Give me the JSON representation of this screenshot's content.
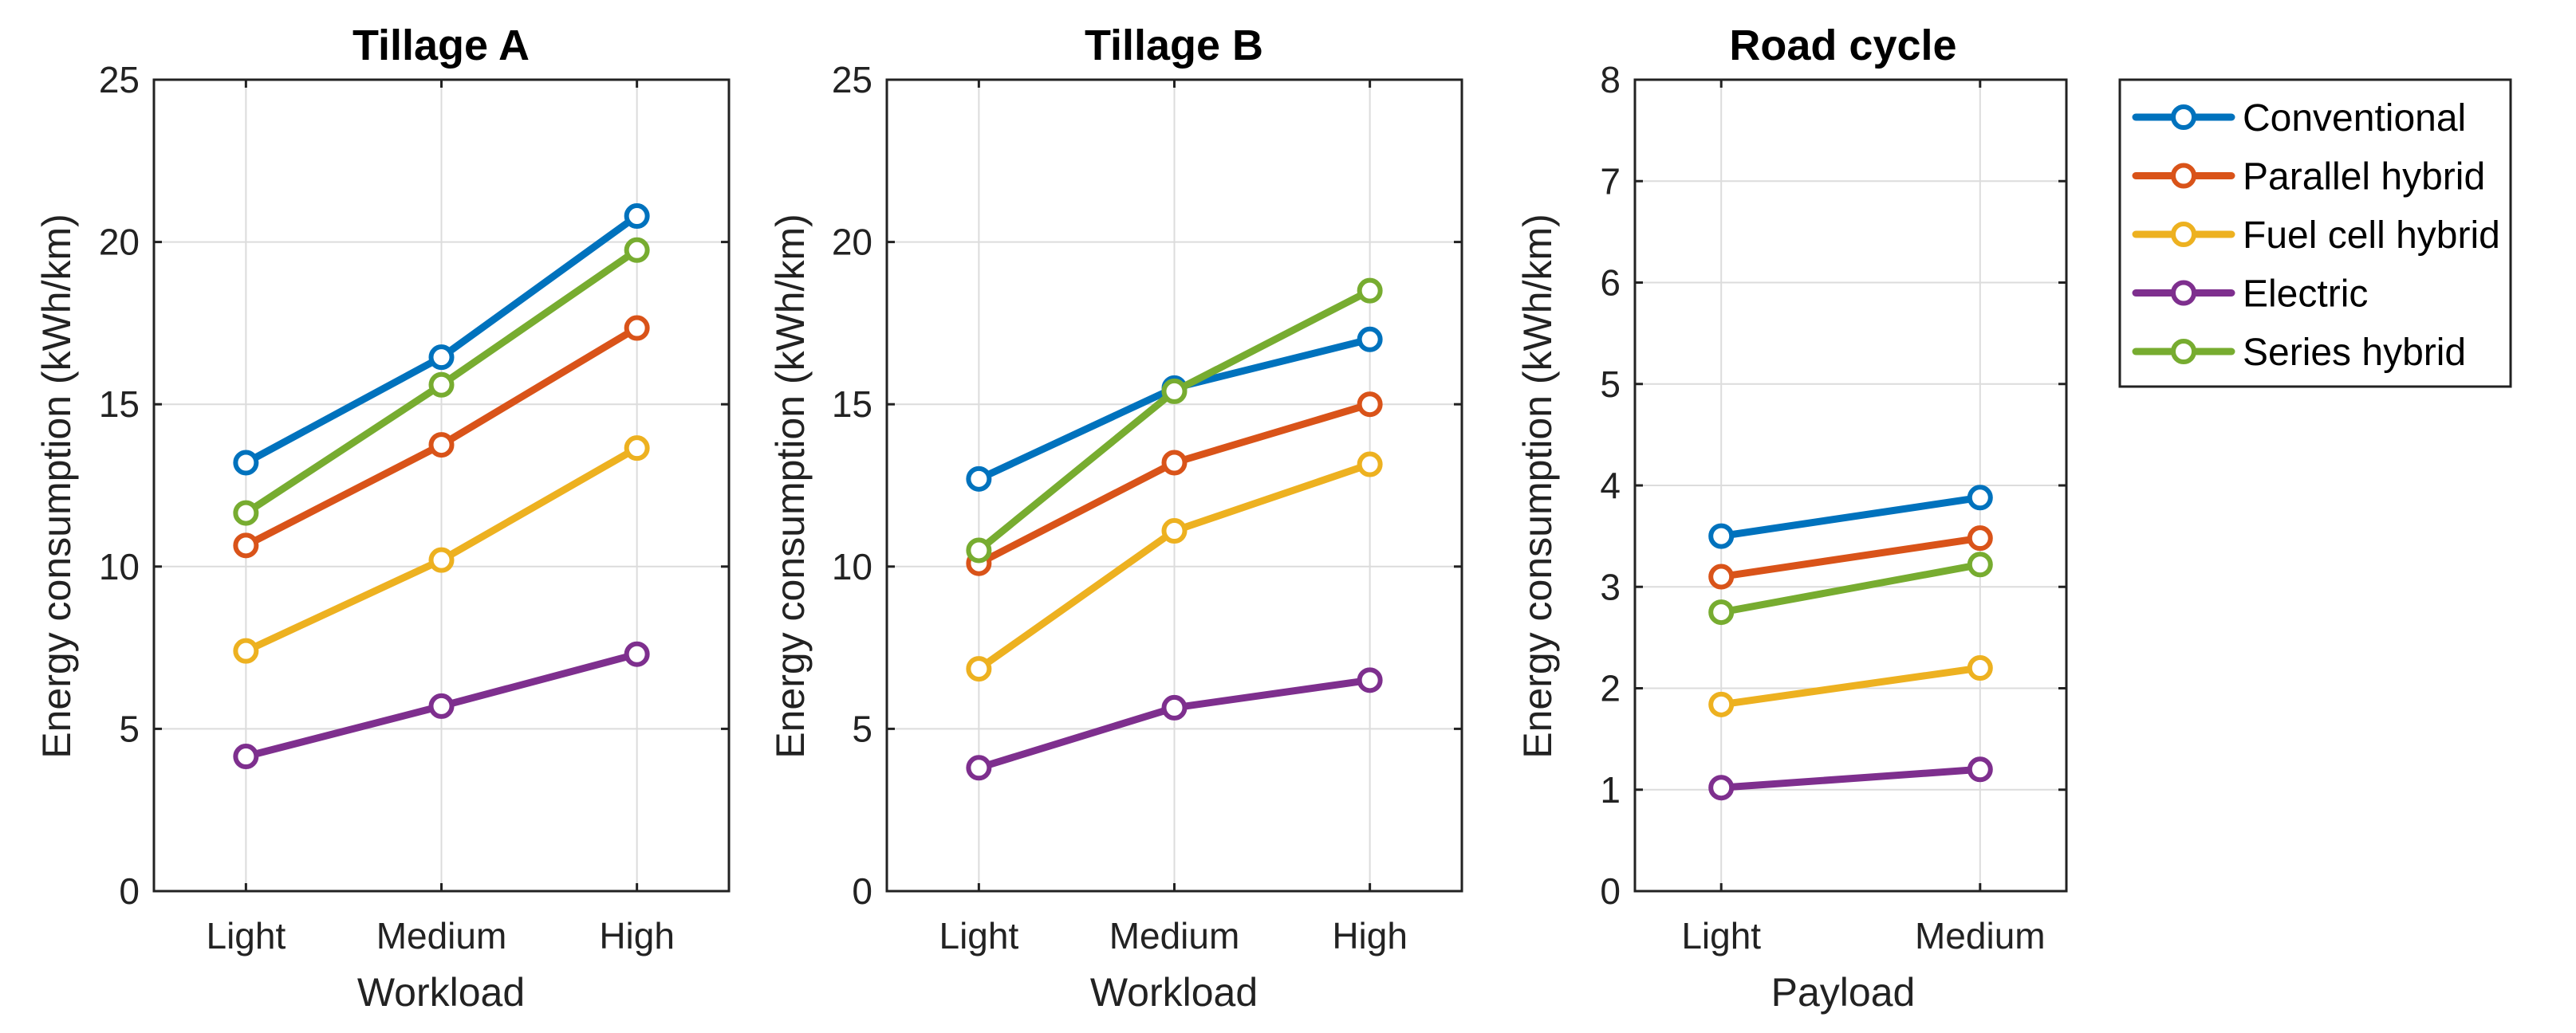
{
  "chart_data": [
    {
      "type": "line",
      "title": "Tillage A",
      "xlabel": "Workload",
      "ylabel": "Energy consumption (kWh/km)",
      "categories": [
        "Light",
        "Medium",
        "High"
      ],
      "ylim": [
        0,
        25
      ],
      "yticks": [
        "0",
        "5",
        "10",
        "15",
        "20",
        "25"
      ],
      "grid": true,
      "series": [
        {
          "name": "Conventional",
          "color": "#0072BD",
          "values": [
            13.2,
            16.45,
            20.8
          ]
        },
        {
          "name": "Parallel hybrid",
          "color": "#D95319",
          "values": [
            10.65,
            13.75,
            17.35
          ]
        },
        {
          "name": "Fuel cell hybrid",
          "color": "#EDB120",
          "values": [
            7.4,
            10.2,
            13.65
          ]
        },
        {
          "name": "Electric",
          "color": "#7E2F8E",
          "values": [
            4.15,
            5.7,
            7.3
          ]
        },
        {
          "name": "Series hybrid",
          "color": "#77AC30",
          "values": [
            11.65,
            15.6,
            19.75
          ]
        }
      ]
    },
    {
      "type": "line",
      "title": "Tillage B",
      "xlabel": "Workload",
      "ylabel": "Energy consumption (kWh/km)",
      "categories": [
        "Light",
        "Medium",
        "High"
      ],
      "ylim": [
        0,
        25
      ],
      "yticks": [
        "0",
        "5",
        "10",
        "15",
        "20",
        "25"
      ],
      "grid": true,
      "series": [
        {
          "name": "Conventional",
          "color": "#0072BD",
          "values": [
            12.7,
            15.5,
            17.0
          ]
        },
        {
          "name": "Parallel hybrid",
          "color": "#D95319",
          "values": [
            10.1,
            13.2,
            15.0
          ]
        },
        {
          "name": "Fuel cell hybrid",
          "color": "#EDB120",
          "values": [
            6.85,
            11.1,
            13.15
          ]
        },
        {
          "name": "Electric",
          "color": "#7E2F8E",
          "values": [
            3.8,
            5.65,
            6.5
          ]
        },
        {
          "name": "Series hybrid",
          "color": "#77AC30",
          "values": [
            10.5,
            15.4,
            18.5
          ]
        }
      ]
    },
    {
      "type": "line",
      "title": "Road cycle",
      "xlabel": "Payload",
      "ylabel": "Energy consumption (kWh/km)",
      "categories": [
        "Light",
        "Medium"
      ],
      "ylim": [
        0,
        8
      ],
      "yticks": [
        "0",
        "1",
        "2",
        "3",
        "4",
        "5",
        "6",
        "7",
        "8"
      ],
      "grid": true,
      "series": [
        {
          "name": "Conventional",
          "color": "#0072BD",
          "values": [
            3.5,
            3.88
          ]
        },
        {
          "name": "Parallel hybrid",
          "color": "#D95319",
          "values": [
            3.1,
            3.48
          ]
        },
        {
          "name": "Fuel cell hybrid",
          "color": "#EDB120",
          "values": [
            1.84,
            2.2
          ]
        },
        {
          "name": "Electric",
          "color": "#7E2F8E",
          "values": [
            1.02,
            1.2
          ]
        },
        {
          "name": "Series hybrid",
          "color": "#77AC30",
          "values": [
            2.75,
            3.22
          ]
        }
      ]
    }
  ],
  "legend": {
    "placement": "right",
    "entries": [
      {
        "label": "Conventional",
        "color": "#0072BD"
      },
      {
        "label": "Parallel hybrid",
        "color": "#D95319"
      },
      {
        "label": "Fuel cell hybrid",
        "color": "#EDB120"
      },
      {
        "label": "Electric",
        "color": "#7E2F8E"
      },
      {
        "label": "Series hybrid",
        "color": "#77AC30"
      }
    ]
  }
}
